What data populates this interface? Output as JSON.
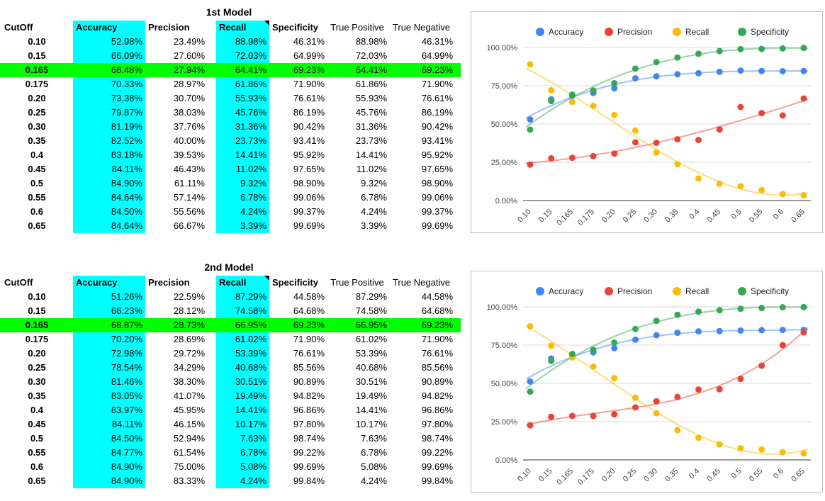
{
  "headers": {
    "cutoff": "CutOff",
    "accuracy": "Accuracy",
    "precision": "Precision",
    "recall": "Recall",
    "specificity": "Specificity",
    "true_positive": "True Positive",
    "true_negative": "True Negative"
  },
  "colors": {
    "accuracy": "#4285f4",
    "precision": "#ea4335",
    "recall": "#fbbc04",
    "specificity": "#34a853",
    "cyan_column": "#00ffff",
    "highlight_row": "#00ff00"
  },
  "tables": [
    {
      "title": "1st Model",
      "rows": [
        [
          "0.10",
          "52.98%",
          "23.49%",
          "88.98%",
          "46.31%",
          "88.98%",
          "46.31%"
        ],
        [
          "0.15",
          "66.09%",
          "27.60%",
          "72.03%",
          "64.99%",
          "72.03%",
          "64.99%"
        ],
        [
          "0.165",
          "68.48%",
          "27.94%",
          "64.41%",
          "69.23%",
          "64.41%",
          "69.23%"
        ],
        [
          "0.175",
          "70.33%",
          "28.97%",
          "61.86%",
          "71.90%",
          "61.86%",
          "71.90%"
        ],
        [
          "0.20",
          "73.38%",
          "30.70%",
          "55.93%",
          "76.61%",
          "55.93%",
          "76.61%"
        ],
        [
          "0.25",
          "79.87%",
          "38.03%",
          "45.76%",
          "86.19%",
          "45.76%",
          "86.19%"
        ],
        [
          "0.30",
          "81.19%",
          "37.76%",
          "31.36%",
          "90.42%",
          "31.36%",
          "90.42%"
        ],
        [
          "0.35",
          "82.52%",
          "40.00%",
          "23.73%",
          "93.41%",
          "23.73%",
          "93.41%"
        ],
        [
          "0.4",
          "83.18%",
          "39.53%",
          "14.41%",
          "95.92%",
          "14.41%",
          "95.92%"
        ],
        [
          "0.45",
          "84.11%",
          "46.43%",
          "11.02%",
          "97.65%",
          "11.02%",
          "97.65%"
        ],
        [
          "0.5",
          "84.90%",
          "61.11%",
          "9.32%",
          "98.90%",
          "9.32%",
          "98.90%"
        ],
        [
          "0.55",
          "84.64%",
          "57.14%",
          "6.78%",
          "99.06%",
          "6.78%",
          "99.06%"
        ],
        [
          "0.6",
          "84.50%",
          "55.56%",
          "4.24%",
          "99.37%",
          "4.24%",
          "99.37%"
        ],
        [
          "0.65",
          "84.64%",
          "66.67%",
          "3.39%",
          "99.69%",
          "3.39%",
          "99.69%"
        ]
      ],
      "highlight_row": 2
    },
    {
      "title": "2nd Model",
      "rows": [
        [
          "0.10",
          "51.26%",
          "22.59%",
          "87.29%",
          "44.58%",
          "87.29%",
          "44.58%"
        ],
        [
          "0.15",
          "66.23%",
          "28.12%",
          "74.58%",
          "64.68%",
          "74.58%",
          "64.68%"
        ],
        [
          "0.165",
          "68.87%",
          "28.73%",
          "66.95%",
          "69.23%",
          "66.95%",
          "69.23%"
        ],
        [
          "0.175",
          "70.20%",
          "28.69%",
          "61.02%",
          "71.90%",
          "61.02%",
          "71.90%"
        ],
        [
          "0.20",
          "72.98%",
          "29.72%",
          "53.39%",
          "76.61%",
          "53.39%",
          "76.61%"
        ],
        [
          "0.25",
          "78.54%",
          "34.29%",
          "40.68%",
          "85.56%",
          "40.68%",
          "85.56%"
        ],
        [
          "0.30",
          "81.46%",
          "38.30%",
          "30.51%",
          "90.89%",
          "30.51%",
          "90.89%"
        ],
        [
          "0.35",
          "83.05%",
          "41.07%",
          "19.49%",
          "94.82%",
          "19.49%",
          "94.82%"
        ],
        [
          "0.4",
          "83.97%",
          "45.95%",
          "14.41%",
          "96.86%",
          "14.41%",
          "96.86%"
        ],
        [
          "0.45",
          "84.11%",
          "46.15%",
          "10.17%",
          "97.80%",
          "10.17%",
          "97.80%"
        ],
        [
          "0.5",
          "84.50%",
          "52.94%",
          "7.63%",
          "98.74%",
          "7.63%",
          "98.74%"
        ],
        [
          "0.55",
          "84.77%",
          "61.54%",
          "6.78%",
          "99.22%",
          "6.78%",
          "99.22%"
        ],
        [
          "0.6",
          "84.90%",
          "75.00%",
          "5.08%",
          "99.69%",
          "5.08%",
          "99.69%"
        ],
        [
          "0.65",
          "84.90%",
          "83.33%",
          "4.24%",
          "99.84%",
          "4.24%",
          "99.84%"
        ]
      ],
      "highlight_row": 2
    }
  ],
  "chart_data": [
    {
      "type": "scatter",
      "trendlines": true,
      "legend_position": "top",
      "grid": true,
      "ylim": [
        0,
        100
      ],
      "y_ticks": [
        "0.00%",
        "25.00%",
        "50.00%",
        "75.00%",
        "100.00%"
      ],
      "categories": [
        "0.10",
        "0.15",
        "0.165",
        "0.175",
        "0.20",
        "0.25",
        "0.30",
        "0.35",
        "0.4",
        "0.45",
        "0.5",
        "0.55",
        "0.6",
        "0.65"
      ],
      "series": [
        {
          "name": "Accuracy",
          "values": [
            52.98,
            66.09,
            68.48,
            70.33,
            73.38,
            79.87,
            81.19,
            82.52,
            83.18,
            84.11,
            84.9,
            84.64,
            84.5,
            84.64
          ]
        },
        {
          "name": "Precision",
          "values": [
            23.49,
            27.6,
            27.94,
            28.97,
            30.7,
            38.03,
            37.76,
            40.0,
            39.53,
            46.43,
            61.11,
            57.14,
            55.56,
            66.67
          ]
        },
        {
          "name": "Recall",
          "values": [
            88.98,
            72.03,
            64.41,
            61.86,
            55.93,
            45.76,
            31.36,
            23.73,
            14.41,
            11.02,
            9.32,
            6.78,
            4.24,
            3.39
          ]
        },
        {
          "name": "Specificity",
          "values": [
            46.31,
            64.99,
            69.23,
            71.9,
            76.61,
            86.19,
            90.42,
            93.41,
            95.92,
            97.65,
            98.9,
            99.06,
            99.37,
            99.69
          ]
        }
      ]
    },
    {
      "type": "scatter",
      "trendlines": true,
      "legend_position": "top",
      "grid": true,
      "ylim": [
        0,
        100
      ],
      "y_ticks": [
        "0.00%",
        "25.00%",
        "50.00%",
        "75.00%",
        "100.00%"
      ],
      "categories": [
        "0.10",
        "0.15",
        "0.165",
        "0.175",
        "0.20",
        "0.25",
        "0.30",
        "0.35",
        "0.4",
        "0.45",
        "0.5",
        "0.55",
        "0.6",
        "0.65"
      ],
      "series": [
        {
          "name": "Accuracy",
          "values": [
            51.26,
            66.23,
            68.87,
            70.2,
            72.98,
            78.54,
            81.46,
            83.05,
            83.97,
            84.11,
            84.5,
            84.77,
            84.9,
            84.9
          ]
        },
        {
          "name": "Precision",
          "values": [
            22.59,
            28.12,
            28.73,
            28.69,
            29.72,
            34.29,
            38.3,
            41.07,
            45.95,
            46.15,
            52.94,
            61.54,
            75.0,
            83.33
          ]
        },
        {
          "name": "Recall",
          "values": [
            87.29,
            74.58,
            66.95,
            61.02,
            53.39,
            40.68,
            30.51,
            19.49,
            14.41,
            10.17,
            7.63,
            6.78,
            5.08,
            4.24
          ]
        },
        {
          "name": "Specificity",
          "values": [
            44.58,
            64.68,
            69.23,
            71.9,
            76.61,
            85.56,
            90.89,
            94.82,
            96.86,
            97.8,
            98.74,
            99.22,
            99.69,
            99.84
          ]
        }
      ]
    }
  ]
}
